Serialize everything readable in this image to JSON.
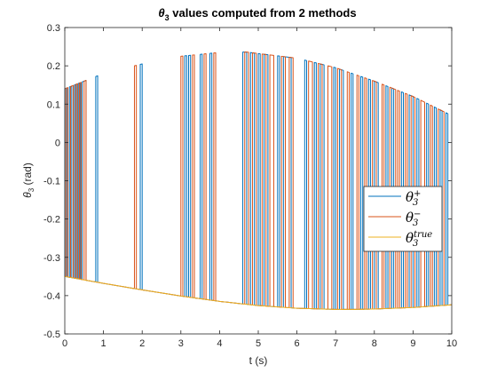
{
  "chart_data": {
    "type": "line",
    "title": {
      "main": "θ",
      "sub": "3",
      "rest": " values computed from 2 methods"
    },
    "xlabel": "t (s)",
    "ylabel": {
      "main": "θ",
      "sub": "3",
      "rest": " (rad)"
    },
    "xlim": [
      0,
      10
    ],
    "ylim": [
      -0.5,
      0.3
    ],
    "xticks": [
      0,
      1,
      2,
      3,
      4,
      5,
      6,
      7,
      8,
      9,
      10
    ],
    "yticks": [
      0.3,
      0.2,
      0.1,
      0,
      -0.1,
      -0.2,
      -0.3,
      -0.4,
      -0.5
    ],
    "xtick_labels": [
      "0",
      "1",
      "2",
      "3",
      "4",
      "5",
      "6",
      "7",
      "8",
      "9",
      "10"
    ],
    "ytick_labels": [
      "0.3",
      "0.2",
      "0.1",
      "0",
      "-0.1",
      "-0.2",
      "-0.3",
      "-0.4",
      "-0.5"
    ],
    "grid": false,
    "legend_position": "right",
    "colors": {
      "plus": "#0072BD",
      "minus": "#D95319",
      "true": "#EDB120",
      "axes": "#262626"
    },
    "upper_branch": {
      "t": [
        0,
        1,
        2,
        3,
        4,
        4.7,
        5,
        6,
        7,
        8,
        9,
        10
      ],
      "y": [
        0.14,
        0.18,
        0.205,
        0.225,
        0.235,
        0.236,
        0.232,
        0.22,
        0.195,
        0.16,
        0.12,
        0.07
      ]
    },
    "lower_branch": {
      "t": [
        0,
        1,
        2,
        3,
        4,
        5,
        6,
        7,
        7.5,
        8,
        9,
        10
      ],
      "y": [
        -0.35,
        -0.368,
        -0.385,
        -0.401,
        -0.415,
        -0.426,
        -0.433,
        -0.436,
        -0.436,
        -0.435,
        -0.431,
        -0.424
      ]
    },
    "series": [
      {
        "name": "θ3+",
        "legend": {
          "base": "θ",
          "sub": "3",
          "sup": "+"
        },
        "switch_times": [
          0,
          0.05,
          0.12,
          0.18,
          0.25,
          0.3,
          0.35,
          0.4,
          0.45,
          0.55,
          0.8,
          0.85,
          1.95,
          2.0,
          3.1,
          3.15,
          3.2,
          3.25,
          3.5,
          3.55,
          3.75,
          3.8,
          4.6,
          4.7,
          4.8,
          4.9,
          5.0,
          5.05,
          5.15,
          5.25,
          5.5,
          5.55,
          5.65,
          5.85,
          6.2,
          6.25,
          6.45,
          6.5,
          6.6,
          6.7,
          6.95,
          7.0,
          7.1,
          7.2,
          7.4,
          7.45,
          7.65,
          7.7,
          7.85,
          7.9,
          8.0,
          8.1,
          8.3,
          8.35,
          8.45,
          8.5,
          8.7,
          8.75,
          8.9,
          9.0,
          9.1,
          9.15,
          9.35,
          9.4,
          9.55,
          9.6,
          9.7,
          9.75,
          9.85,
          9.9
        ],
        "start_branch": "lower"
      },
      {
        "name": "θ3-",
        "legend": {
          "base": "θ",
          "sub": "3",
          "sup": "−"
        },
        "switch_times": [
          0.03,
          0.08,
          0.15,
          0.22,
          0.28,
          0.33,
          0.38,
          0.42,
          0.5,
          0.55,
          1.8,
          1.85,
          3.0,
          3.05,
          3.3,
          3.35,
          3.6,
          3.65,
          3.85,
          3.9,
          4.65,
          4.75,
          4.85,
          4.95,
          5.1,
          5.2,
          5.3,
          5.4,
          5.6,
          5.7,
          5.8,
          5.9,
          6.3,
          6.4,
          6.55,
          6.65,
          6.8,
          6.9,
          7.05,
          7.15,
          7.3,
          7.35,
          7.55,
          7.6,
          7.75,
          7.8,
          7.95,
          8.05,
          8.2,
          8.25,
          8.4,
          8.55,
          8.6,
          8.65,
          8.8,
          8.85,
          8.95,
          9.05,
          9.2,
          9.3,
          9.45,
          9.5,
          9.65,
          9.8
        ],
        "start_branch": "lower"
      },
      {
        "name": "θ3true",
        "legend": {
          "base": "θ",
          "sub": "3",
          "sup": "true"
        },
        "follows": "lower"
      }
    ]
  }
}
